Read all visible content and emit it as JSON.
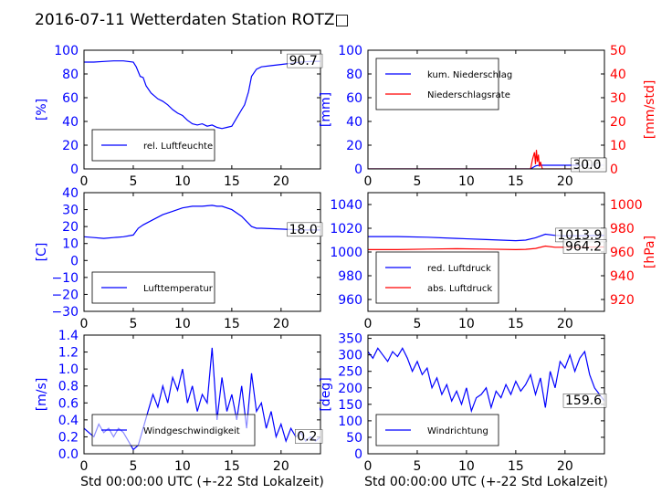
{
  "figure": {
    "title": "2016-07-11 Wetterdaten Station ROTZ□",
    "xlabel": "Std 00:00:00 UTC (+-22 Std Lokalzeit)"
  },
  "colors": {
    "primary": "#0000ff",
    "secondary": "#ff0000",
    "axis": "#000000"
  },
  "chart_data": [
    {
      "type": "line",
      "ylabel": "[%]",
      "xlim": [
        0,
        24
      ],
      "ylim": [
        0,
        100
      ],
      "xticks": [
        "0",
        "5",
        "10",
        "15",
        "20"
      ],
      "yticks": [
        "0",
        "20",
        "40",
        "60",
        "80",
        "100"
      ],
      "legend": {
        "placement": "lower-left",
        "entries": [
          "rel. Luftfeuchte"
        ]
      },
      "last_value_label": "90.7",
      "series": [
        {
          "name": "rel. Luftfeuchte",
          "axis": "left",
          "x": [
            0,
            1,
            2,
            3,
            4,
            5,
            5.3,
            5.7,
            6,
            6.3,
            6.8,
            7.5,
            8,
            8.5,
            9,
            9.5,
            10,
            10.5,
            11,
            11.5,
            12,
            12.5,
            13,
            13.5,
            14,
            14.5,
            15,
            15.5,
            16,
            16.3,
            16.7,
            17,
            17.5,
            18,
            19,
            20,
            21,
            22,
            23,
            24
          ],
          "y": [
            90,
            90,
            90.5,
            91,
            91,
            90,
            86,
            78,
            77,
            70,
            64,
            59,
            57,
            54,
            50,
            47,
            45,
            41,
            38,
            37,
            38,
            36,
            37,
            35,
            34,
            35,
            36,
            43,
            50,
            54,
            65,
            78,
            84,
            86,
            87,
            88,
            89,
            90,
            90.5,
            90.7
          ]
        }
      ]
    },
    {
      "type": "line",
      "ylabel": "[mm]",
      "ylabel_right": "[mm/std]",
      "xlim": [
        0,
        24
      ],
      "ylim": [
        0,
        100
      ],
      "ylim_right": [
        0,
        50
      ],
      "xticks": [
        "0",
        "5",
        "10",
        "15",
        "20"
      ],
      "yticks": [
        "0",
        "20",
        "40",
        "60",
        "80",
        "100"
      ],
      "yticks_right": [
        "0",
        "10",
        "20",
        "30",
        "40",
        "50"
      ],
      "legend": {
        "placement": "upper-left",
        "entries": [
          "kum. Niederschlag",
          "Niederschlagsrate"
        ]
      },
      "last_value_labels": [
        "3.06",
        "0.0"
      ],
      "series": [
        {
          "name": "kum. Niederschlag",
          "axis": "left",
          "x": [
            0,
            16.5,
            16.8,
            17,
            17.3,
            17.6,
            18,
            24
          ],
          "y": [
            0,
            0,
            1.5,
            2.5,
            3,
            3.06,
            3.06,
            3.06
          ]
        },
        {
          "name": "Niederschlagsrate",
          "axis": "right",
          "x": [
            0,
            16.5,
            16.7,
            16.9,
            17,
            17.1,
            17.2,
            17.3,
            17.4,
            17.5,
            17.7,
            24
          ],
          "y": [
            0,
            0,
            4,
            7,
            2,
            8,
            3,
            6,
            1,
            3,
            0,
            0
          ]
        }
      ]
    },
    {
      "type": "line",
      "ylabel": "[C]",
      "xlim": [
        0,
        24
      ],
      "ylim": [
        -30,
        40
      ],
      "xticks": [
        "0",
        "5",
        "10",
        "15",
        "20"
      ],
      "yticks": [
        "−30",
        "−20",
        "−10",
        "0",
        "10",
        "20",
        "30",
        "40"
      ],
      "legend": {
        "placement": "lower-left",
        "entries": [
          "Lufttemperatur"
        ]
      },
      "last_value_label": "18.0",
      "series": [
        {
          "name": "Lufttemperatur",
          "axis": "left",
          "x": [
            0,
            1,
            2,
            3,
            4,
            5,
            5.5,
            6,
            7,
            8,
            9,
            10,
            11,
            12,
            13,
            13.5,
            14,
            15,
            16,
            17,
            17.5,
            18,
            20,
            22,
            24
          ],
          "y": [
            14,
            13.5,
            13,
            13.5,
            14,
            15,
            19,
            21,
            24,
            27,
            29,
            31,
            32,
            32,
            32.5,
            32,
            32,
            30,
            26,
            20,
            19,
            19,
            18.5,
            18,
            18
          ]
        }
      ]
    },
    {
      "type": "line",
      "ylabel_right": "[hPa]",
      "xlim": [
        0,
        24
      ],
      "ylim": [
        950,
        1050
      ],
      "ylim_right": [
        910,
        1010
      ],
      "xticks": [
        "0",
        "5",
        "10",
        "15",
        "20"
      ],
      "yticks": [
        "960",
        "980",
        "1000",
        "1020",
        "1040"
      ],
      "yticks_right": [
        "920",
        "940",
        "960",
        "980",
        "1000"
      ],
      "legend": {
        "placement": "lower-left",
        "entries": [
          "red. Luftdruck",
          "abs. Luftdruck"
        ]
      },
      "last_value_labels": [
        "1013.9",
        "964.2"
      ],
      "series": [
        {
          "name": "red. Luftdruck",
          "axis": "left",
          "x": [
            0,
            3,
            6,
            9,
            12,
            15,
            16,
            17,
            18,
            19,
            20,
            22,
            24
          ],
          "y": [
            1013,
            1013,
            1012.5,
            1011.5,
            1010.5,
            1009.5,
            1010,
            1012,
            1015,
            1014,
            1013.5,
            1013.8,
            1013.9
          ]
        },
        {
          "name": "abs. Luftdruck",
          "axis": "right",
          "x": [
            0,
            3,
            6,
            9,
            12,
            15,
            16,
            17,
            18,
            19,
            20,
            22,
            24
          ],
          "y": [
            962,
            962,
            962.5,
            962.8,
            962.5,
            962,
            962.2,
            963,
            965,
            964,
            964,
            964.1,
            964.2
          ]
        }
      ]
    },
    {
      "type": "line",
      "ylabel": "[m/s]",
      "xlim": [
        0,
        24
      ],
      "ylim": [
        0,
        1.4
      ],
      "xticks": [
        "0",
        "5",
        "10",
        "15",
        "20"
      ],
      "yticks": [
        "0.0",
        "0.2",
        "0.4",
        "0.6",
        "0.8",
        "1.0",
        "1.2",
        "1.4"
      ],
      "legend": {
        "placement": "lower-left",
        "entries": [
          "Windgeschwindigkeit"
        ]
      },
      "last_value_label": "0.2",
      "series": [
        {
          "name": "Windgeschwindigkeit",
          "axis": "left",
          "x": [
            0,
            0.5,
            1,
            1.5,
            2,
            2.5,
            3,
            3.5,
            4,
            4.5,
            5,
            5.5,
            6,
            6.5,
            7,
            7.5,
            8,
            8.5,
            9,
            9.5,
            10,
            10.5,
            11,
            11.5,
            12,
            12.5,
            13,
            13.5,
            14,
            14.5,
            15,
            15.5,
            16,
            16.5,
            17,
            17.5,
            18,
            18.5,
            19,
            19.5,
            20,
            20.5,
            21,
            21.5,
            22,
            22.5,
            23,
            23.5,
            24
          ],
          "y": [
            0.3,
            0.25,
            0.2,
            0.35,
            0.25,
            0.3,
            0.2,
            0.3,
            0.25,
            0.15,
            0.05,
            0.1,
            0.3,
            0.5,
            0.7,
            0.55,
            0.8,
            0.6,
            0.9,
            0.75,
            1.0,
            0.6,
            0.8,
            0.5,
            0.7,
            0.6,
            1.25,
            0.4,
            0.9,
            0.5,
            0.7,
            0.4,
            0.8,
            0.3,
            0.95,
            0.5,
            0.6,
            0.3,
            0.5,
            0.2,
            0.35,
            0.15,
            0.3,
            0.2,
            0.25,
            0.15,
            0.2,
            0.15,
            0.2
          ]
        }
      ]
    },
    {
      "type": "line",
      "ylabel": "[deg]",
      "xlim": [
        0,
        24
      ],
      "ylim": [
        0,
        360
      ],
      "xticks": [
        "0",
        "5",
        "10",
        "15",
        "20"
      ],
      "yticks": [
        "0",
        "50",
        "100",
        "150",
        "200",
        "250",
        "300",
        "350"
      ],
      "legend": {
        "placement": "lower-left",
        "entries": [
          "Windrichtung"
        ]
      },
      "last_value_label": "159.6",
      "series": [
        {
          "name": "Windrichtung",
          "axis": "left",
          "x": [
            0,
            0.5,
            1,
            1.5,
            2,
            2.5,
            3,
            3.5,
            4,
            4.5,
            5,
            5.5,
            6,
            6.5,
            7,
            7.5,
            8,
            8.5,
            9,
            9.5,
            10,
            10.5,
            11,
            11.5,
            12,
            12.5,
            13,
            13.5,
            14,
            14.5,
            15,
            15.5,
            16,
            16.5,
            17,
            17.5,
            18,
            18.5,
            19,
            19.5,
            20,
            20.5,
            21,
            21.5,
            22,
            22.5,
            23,
            23.5,
            24
          ],
          "y": [
            310,
            290,
            320,
            300,
            280,
            310,
            295,
            320,
            290,
            250,
            280,
            240,
            260,
            200,
            230,
            180,
            210,
            160,
            190,
            150,
            200,
            130,
            170,
            180,
            200,
            140,
            190,
            170,
            210,
            180,
            220,
            190,
            210,
            240,
            180,
            230,
            140,
            250,
            200,
            280,
            260,
            300,
            250,
            290,
            310,
            240,
            200,
            180,
            160
          ]
        }
      ]
    }
  ]
}
